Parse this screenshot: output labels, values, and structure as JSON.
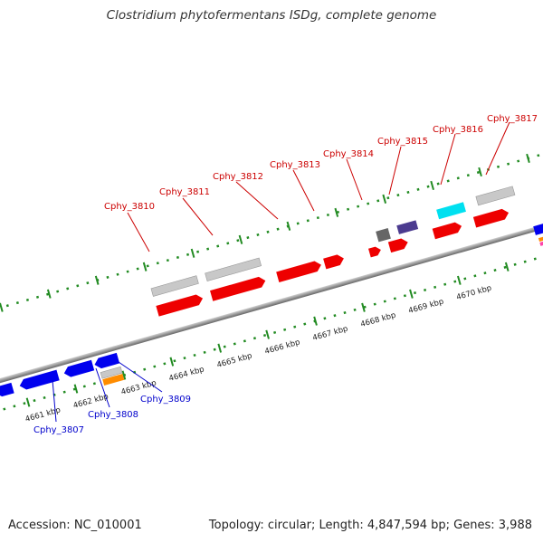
{
  "title": "Clostridium phytofermentans ISDg, complete genome",
  "footer": {
    "accession": "Accession: NC_010001",
    "summary": "Topology: circular; Length: 4,847,594 bp; Genes: 3,988"
  },
  "colors": {
    "forward_label": "#cc0000",
    "reverse_label": "#0000cc",
    "tick": "#228b22",
    "backbone": "#888888"
  },
  "ticks": [
    {
      "label": "4661 kbp"
    },
    {
      "label": "4662 kbp"
    },
    {
      "label": "4663 kbp"
    },
    {
      "label": "4664 kbp"
    },
    {
      "label": "4665 kbp"
    },
    {
      "label": "4666 kbp"
    },
    {
      "label": "4667 kbp"
    },
    {
      "label": "4668 kbp"
    },
    {
      "label": "4669 kbp"
    },
    {
      "label": "4670 kbp"
    }
  ],
  "forward_genes": [
    {
      "label": "Cphy_3810"
    },
    {
      "label": "Cphy_3811"
    },
    {
      "label": "Cphy_3812"
    },
    {
      "label": "Cphy_3813"
    },
    {
      "label": "Cphy_3814"
    },
    {
      "label": "Cphy_3815"
    },
    {
      "label": "Cphy_3816"
    },
    {
      "label": "Cphy_3817"
    }
  ],
  "reverse_genes": [
    {
      "label": "Cphy_3807"
    },
    {
      "label": "Cphy_3808"
    },
    {
      "label": "Cphy_3809"
    }
  ]
}
